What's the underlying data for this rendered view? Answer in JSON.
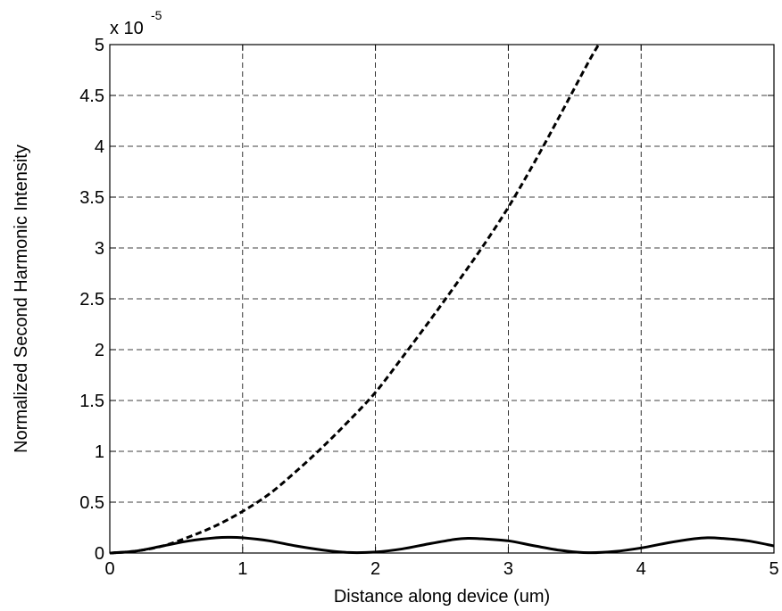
{
  "chart_data": {
    "type": "line",
    "title": "",
    "xlabel": "Distance along device (um)",
    "ylabel": "Normalized Second Harmonic Intensity",
    "xlim": [
      0,
      5
    ],
    "ylim": [
      0,
      5
    ],
    "y_multiplier": {
      "base": "x 10",
      "exponent": "-5"
    },
    "x_ticks": [
      "0",
      "1",
      "2",
      "3",
      "4",
      "5"
    ],
    "y_ticks": [
      "0",
      "0.5",
      "1",
      "1.5",
      "2",
      "2.5",
      "3",
      "3.5",
      "4",
      "4.5",
      "5"
    ],
    "grid": true,
    "legend": "none",
    "series": [
      {
        "style": "solid",
        "color": "#000000",
        "x": [
          0,
          0.2,
          0.4,
          0.6,
          0.8,
          0.9,
          1.0,
          1.2,
          1.4,
          1.6,
          1.8,
          2.0,
          2.2,
          2.4,
          2.6,
          2.7,
          2.8,
          3.0,
          3.2,
          3.4,
          3.6,
          3.8,
          4.0,
          4.2,
          4.4,
          4.5,
          4.6,
          4.8,
          5.0
        ],
        "y": [
          0,
          0.02,
          0.07,
          0.12,
          0.15,
          0.155,
          0.15,
          0.12,
          0.07,
          0.03,
          0.005,
          0.01,
          0.04,
          0.09,
          0.135,
          0.145,
          0.14,
          0.12,
          0.07,
          0.025,
          0.003,
          0.015,
          0.05,
          0.1,
          0.14,
          0.15,
          0.145,
          0.12,
          0.07
        ]
      },
      {
        "style": "dashed",
        "color": "#000000",
        "x": [
          0,
          0.2,
          0.4,
          0.6,
          0.8,
          1.0,
          1.2,
          1.4,
          1.6,
          1.8,
          2.0,
          2.2,
          2.4,
          2.6,
          2.8,
          3.0,
          3.2,
          3.4,
          3.6,
          3.68
        ],
        "y": [
          0,
          0.02,
          0.07,
          0.16,
          0.27,
          0.41,
          0.58,
          0.8,
          1.04,
          1.3,
          1.58,
          1.92,
          2.27,
          2.63,
          3.0,
          3.4,
          3.85,
          4.33,
          4.82,
          5.0
        ]
      }
    ]
  }
}
